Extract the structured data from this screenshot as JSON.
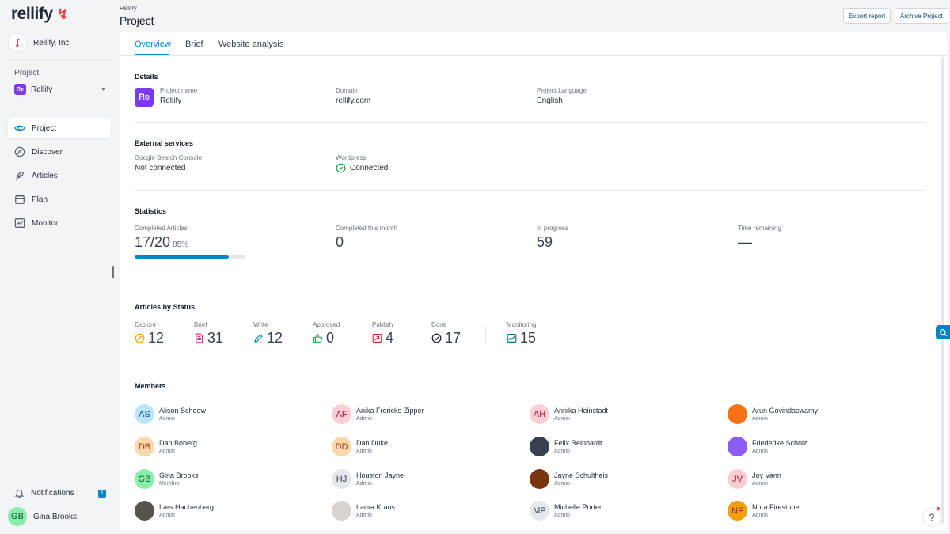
{
  "app": {
    "logo": "rellify",
    "org": "Rellify, Inc"
  },
  "sidebar": {
    "project_label": "Project",
    "project_badge": "Re",
    "project_name": "Rellify",
    "items": [
      {
        "label": "Project",
        "icon": "eye-icon",
        "active": true
      },
      {
        "label": "Discover",
        "icon": "compass-icon"
      },
      {
        "label": "Articles",
        "icon": "feather-icon"
      },
      {
        "label": "Plan",
        "icon": "calendar-icon"
      },
      {
        "label": "Monitor",
        "icon": "chart-line-icon"
      }
    ],
    "notifications_label": "Notifications",
    "notifications_count": "1",
    "user_initials": "GB",
    "user_name": "Gina Brooks"
  },
  "header": {
    "breadcrumb": "Rellify",
    "title": "Project",
    "export_label": "Export report",
    "archive_label": "Archive Project"
  },
  "tabs": [
    "Overview",
    "Brief",
    "Website analysis"
  ],
  "details": {
    "title": "Details",
    "badge": "Re",
    "project_name_label": "Project name",
    "project_name": "Rellify",
    "domain_label": "Domain",
    "domain": "rellify.com",
    "language_label": "Project Language",
    "language": "English"
  },
  "external": {
    "title": "External services",
    "gsc_label": "Google Search Console",
    "gsc_value": "Not connected",
    "wp_label": "Wordpress",
    "wp_value": "Connected"
  },
  "stats": {
    "title": "Statistics",
    "completed_label": "Completed Articles",
    "completed_value": "17/20",
    "completed_pct": "85%",
    "completed_fraction": 0.85,
    "month_label": "Completed this month",
    "month_value": "0",
    "progress_label": "In progress",
    "progress_value": "59",
    "remaining_label": "Time remaining",
    "remaining_value": "—"
  },
  "articles_status": {
    "title": "Articles by Status",
    "items": [
      {
        "label": "Explore",
        "value": "12",
        "icon": "compass-icon",
        "color": "#f59e0b"
      },
      {
        "label": "Brief",
        "value": "31",
        "icon": "document-icon",
        "color": "#db2777"
      },
      {
        "label": "Write",
        "value": "12",
        "icon": "pencil-icon",
        "color": "#0284c7"
      },
      {
        "label": "Approved",
        "value": "0",
        "icon": "thumbs-up-icon",
        "color": "#16a34a"
      },
      {
        "label": "Publish",
        "value": "4",
        "icon": "publish-icon",
        "color": "#dc2626"
      },
      {
        "label": "Done",
        "value": "17",
        "icon": "check-circle-icon",
        "color": "#111827"
      },
      {
        "label": "Monitoring",
        "value": "15",
        "icon": "chart-line-icon",
        "color": "#0f766e"
      }
    ]
  },
  "members": {
    "title": "Members",
    "list": [
      {
        "initials": "AS",
        "name": "Alison Schoew",
        "role": "Admin",
        "bg": "#bae6fd",
        "fg": "#0c4a6e"
      },
      {
        "initials": "AF",
        "name": "Anika Frericks-Zipper",
        "role": "Admin",
        "bg": "#fecdd3",
        "fg": "#9f1239"
      },
      {
        "initials": "AH",
        "name": "Annika Heinstadt",
        "role": "Admin",
        "bg": "#fecdd3",
        "fg": "#9f1239"
      },
      {
        "initials": "",
        "name": "Arun Govindaswamy",
        "role": "Admin",
        "bg": "#f97316",
        "fg": "#ffffff"
      },
      {
        "initials": "DB",
        "name": "Dan Boberg",
        "role": "Admin",
        "bg": "#fed7aa",
        "fg": "#9a3412"
      },
      {
        "initials": "DD",
        "name": "Dan Duke",
        "role": "Admin",
        "bg": "#fed7aa",
        "fg": "#9a3412"
      },
      {
        "initials": "",
        "name": "Felix Reinhardt",
        "role": "Admin",
        "bg": "#374151",
        "fg": "#ffffff"
      },
      {
        "initials": "",
        "name": "Friederike Scholz",
        "role": "Admin",
        "bg": "#8b5cf6",
        "fg": "#ffffff"
      },
      {
        "initials": "GB",
        "name": "Gina Brooks",
        "role": "Member",
        "bg": "#86efac",
        "fg": "#14532d"
      },
      {
        "initials": "HJ",
        "name": "Houston Jayne",
        "role": "Admin",
        "bg": "#e5e7eb",
        "fg": "#374151"
      },
      {
        "initials": "",
        "name": "Jayne Schultheis",
        "role": "Admin",
        "bg": "#78350f",
        "fg": "#ffffff"
      },
      {
        "initials": "JV",
        "name": "Joy Vann",
        "role": "Admin",
        "bg": "#fecdd3",
        "fg": "#9f1239"
      },
      {
        "initials": "",
        "name": "Lars Hachenberg",
        "role": "Admin",
        "bg": "#57534e",
        "fg": "#ffffff"
      },
      {
        "initials": "",
        "name": "Laura Kraus",
        "role": "Admin",
        "bg": "#d6d3d1",
        "fg": "#1f2937"
      },
      {
        "initials": "MP",
        "name": "Michelle Porter",
        "role": "Admin",
        "bg": "#e5e7eb",
        "fg": "#374151"
      },
      {
        "initials": "NF",
        "name": "Nora Firestone",
        "role": "Admin",
        "bg": "#f59e0b",
        "fg": "#7c2d12"
      }
    ]
  },
  "help_label": "?"
}
